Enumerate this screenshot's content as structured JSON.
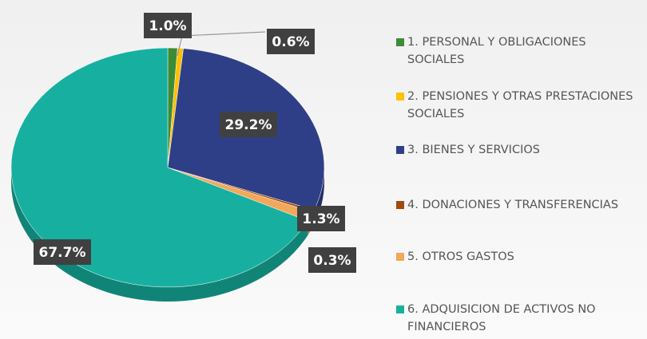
{
  "chart_data": {
    "type": "pie",
    "categories": [
      "1. PERSONAL Y OBLIGACIONES SOCIALES",
      "2. PENSIONES Y OTRAS PRESTACIONES SOCIALES",
      "3. BIENES Y SERVICIOS",
      "4. DONACIONES Y TRANSFERENCIAS",
      "5. OTROS GASTOS",
      "6. ADQUISICION DE ACTIVOS NO FINANCIEROS"
    ],
    "values": [
      1.0,
      0.6,
      29.2,
      0.3,
      1.3,
      67.7
    ],
    "value_labels": [
      "1.0%",
      "0.6%",
      "29.2%",
      "0.3%",
      "1.3%",
      "67.7%"
    ],
    "colors": [
      "#3d8b37",
      "#ffc000",
      "#2f3f87",
      "#a14a10",
      "#f2a85a",
      "#17b0a0"
    ],
    "legend": "right"
  }
}
